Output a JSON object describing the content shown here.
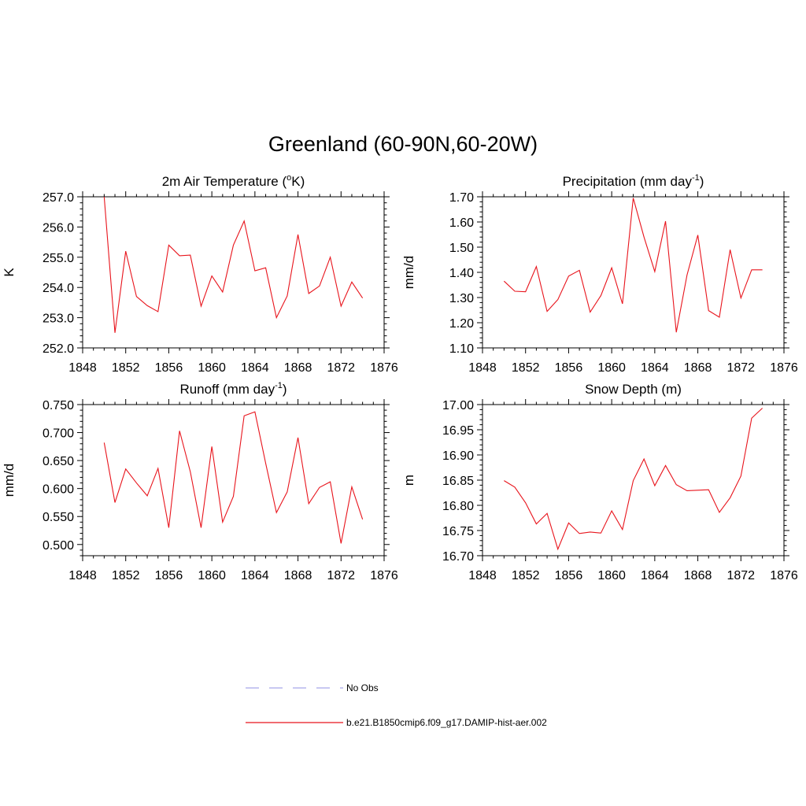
{
  "figure": {
    "title": "Greenland (60-90N,60-20W)"
  },
  "chart_data": [
    {
      "type": "line",
      "title": "2m Air Temperature (",
      "title_sup": "o",
      "title_after": "K)",
      "ylabel": "K",
      "xlim": [
        1848,
        1876
      ],
      "ylim": [
        252.0,
        257.0
      ],
      "xticks": [
        "1848",
        "1852",
        "1856",
        "1860",
        "1864",
        "1868",
        "1872",
        "1876"
      ],
      "yticks": [
        "252.0",
        "253.0",
        "254.0",
        "255.0",
        "256.0",
        "257.0"
      ],
      "x": [
        1850,
        1851,
        1852,
        1853,
        1854,
        1855,
        1856,
        1857,
        1858,
        1859,
        1860,
        1861,
        1862,
        1863,
        1864,
        1865,
        1866,
        1867,
        1868,
        1869,
        1870,
        1871,
        1872,
        1873,
        1874
      ],
      "series": [
        {
          "color": "#e8141c",
          "values": [
            257.0,
            252.5,
            255.2,
            253.7,
            253.4,
            253.2,
            255.4,
            255.05,
            255.07,
            253.38,
            254.38,
            253.85,
            255.4,
            256.2,
            254.55,
            254.65,
            253.0,
            253.72,
            255.75,
            253.8,
            254.05,
            255.0,
            253.38,
            254.18,
            253.65
          ]
        }
      ]
    },
    {
      "type": "line",
      "title": "Precipitation (mm day",
      "title_sup": "-1",
      "title_after": ")",
      "ylabel": "mm/d",
      "xlim": [
        1848,
        1876
      ],
      "ylim": [
        1.1,
        1.7
      ],
      "xticks": [
        "1848",
        "1852",
        "1856",
        "1860",
        "1864",
        "1868",
        "1872",
        "1876"
      ],
      "yticks": [
        "1.10",
        "1.20",
        "1.30",
        "1.40",
        "1.50",
        "1.60",
        "1.70"
      ],
      "x": [
        1850,
        1851,
        1852,
        1853,
        1854,
        1855,
        1856,
        1857,
        1858,
        1859,
        1860,
        1861,
        1862,
        1863,
        1864,
        1865,
        1866,
        1867,
        1868,
        1869,
        1870,
        1871,
        1872,
        1873,
        1874
      ],
      "series": [
        {
          "color": "#e8141c",
          "values": [
            1.365,
            1.325,
            1.323,
            1.423,
            1.245,
            1.292,
            1.385,
            1.408,
            1.242,
            1.308,
            1.418,
            1.275,
            1.695,
            1.54,
            1.403,
            1.603,
            1.162,
            1.39,
            1.548,
            1.248,
            1.222,
            1.49,
            1.298,
            1.41,
            1.41
          ]
        }
      ]
    },
    {
      "type": "line",
      "title": "Runoff (mm day",
      "title_sup": "-1",
      "title_after": ")",
      "ylabel": "mm/d",
      "xlim": [
        1848,
        1876
      ],
      "ylim": [
        0.48,
        0.75
      ],
      "xticks": [
        "1848",
        "1852",
        "1856",
        "1860",
        "1864",
        "1868",
        "1872",
        "1876"
      ],
      "yticks": [
        "0.500",
        "0.550",
        "0.600",
        "0.650",
        "0.700",
        "0.750"
      ],
      "x": [
        1850,
        1851,
        1852,
        1853,
        1854,
        1855,
        1856,
        1857,
        1858,
        1859,
        1860,
        1861,
        1862,
        1863,
        1864,
        1865,
        1866,
        1867,
        1868,
        1869,
        1870,
        1871,
        1872,
        1873,
        1874
      ],
      "series": [
        {
          "color": "#e8141c",
          "values": [
            0.682,
            0.575,
            0.635,
            0.61,
            0.587,
            0.636,
            0.53,
            0.703,
            0.63,
            0.53,
            0.675,
            0.54,
            0.586,
            0.73,
            0.737,
            0.645,
            0.557,
            0.594,
            0.691,
            0.573,
            0.602,
            0.612,
            0.502,
            0.603,
            0.545
          ]
        }
      ]
    },
    {
      "type": "line",
      "title": "Snow Depth (m)",
      "title_sup": "",
      "title_after": "",
      "ylabel": "m",
      "xlim": [
        1848,
        1876
      ],
      "ylim": [
        16.7,
        17.0
      ],
      "xticks": [
        "1848",
        "1852",
        "1856",
        "1860",
        "1864",
        "1868",
        "1872",
        "1876"
      ],
      "yticks": [
        "16.70",
        "16.75",
        "16.80",
        "16.85",
        "16.90",
        "16.95",
        "17.00"
      ],
      "x": [
        1850,
        1851,
        1852,
        1853,
        1854,
        1855,
        1856,
        1857,
        1858,
        1859,
        1860,
        1861,
        1862,
        1863,
        1864,
        1865,
        1866,
        1867,
        1868,
        1869,
        1870,
        1871,
        1872,
        1873,
        1874
      ],
      "series": [
        {
          "color": "#e8141c",
          "values": [
            16.849,
            16.836,
            16.805,
            16.763,
            16.784,
            16.713,
            16.765,
            16.744,
            16.747,
            16.745,
            16.789,
            16.752,
            16.849,
            16.892,
            16.839,
            16.879,
            16.841,
            16.829,
            16.83,
            16.831,
            16.786,
            16.815,
            16.858,
            16.973,
            16.993
          ]
        }
      ]
    }
  ],
  "legend": {
    "placement": "bottom-center",
    "items": [
      {
        "label": "No Obs",
        "color": "#a8a8ea",
        "dashed": true
      },
      {
        "label": "b.e21.B1850cmip6.f09_g17.DAMIP-hist-aer.002",
        "color": "#e8141c",
        "dashed": false
      }
    ]
  }
}
